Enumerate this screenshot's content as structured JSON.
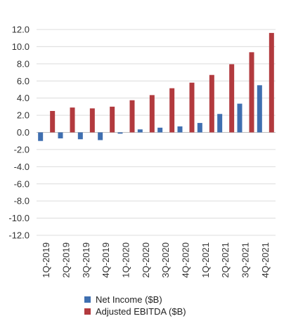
{
  "chart_data": {
    "type": "bar",
    "title": "",
    "xlabel": "",
    "ylabel": "",
    "ylim": [
      -12.0,
      12.0
    ],
    "yticks": [
      12.0,
      10.0,
      8.0,
      6.0,
      4.0,
      2.0,
      0.0,
      -2.0,
      -4.0,
      -6.0,
      -8.0,
      -10.0,
      -12.0
    ],
    "ytick_labels": [
      "12.0",
      "10.0",
      "8.0",
      "6.0",
      "4.0",
      "2.0",
      "0.0",
      "-2.0",
      "-4.0",
      "-6.0",
      "-8.0",
      "-10.0",
      "-12.0"
    ],
    "grid": true,
    "legend_position": "bottom",
    "categories": [
      "1Q-2019",
      "2Q-2019",
      "3Q-2019",
      "4Q-2019",
      "1Q-2020",
      "2Q-2020",
      "3Q-2020",
      "4Q-2020",
      "1Q-2021",
      "2Q-2021",
      "3Q-2021",
      "4Q-2021"
    ],
    "series": [
      {
        "name": "Net Income ($B)",
        "color": "#3f6fb0",
        "values": [
          -1.0,
          -0.7,
          -0.8,
          -0.9,
          -0.15,
          0.35,
          0.55,
          0.7,
          1.1,
          2.15,
          3.35,
          5.5
        ]
      },
      {
        "name": "Adjusted EBITDA ($B)",
        "color": "#b23a3e",
        "values": [
          2.5,
          2.9,
          2.8,
          3.0,
          3.75,
          4.35,
          5.15,
          5.8,
          6.7,
          7.95,
          9.35,
          11.6
        ]
      }
    ]
  }
}
